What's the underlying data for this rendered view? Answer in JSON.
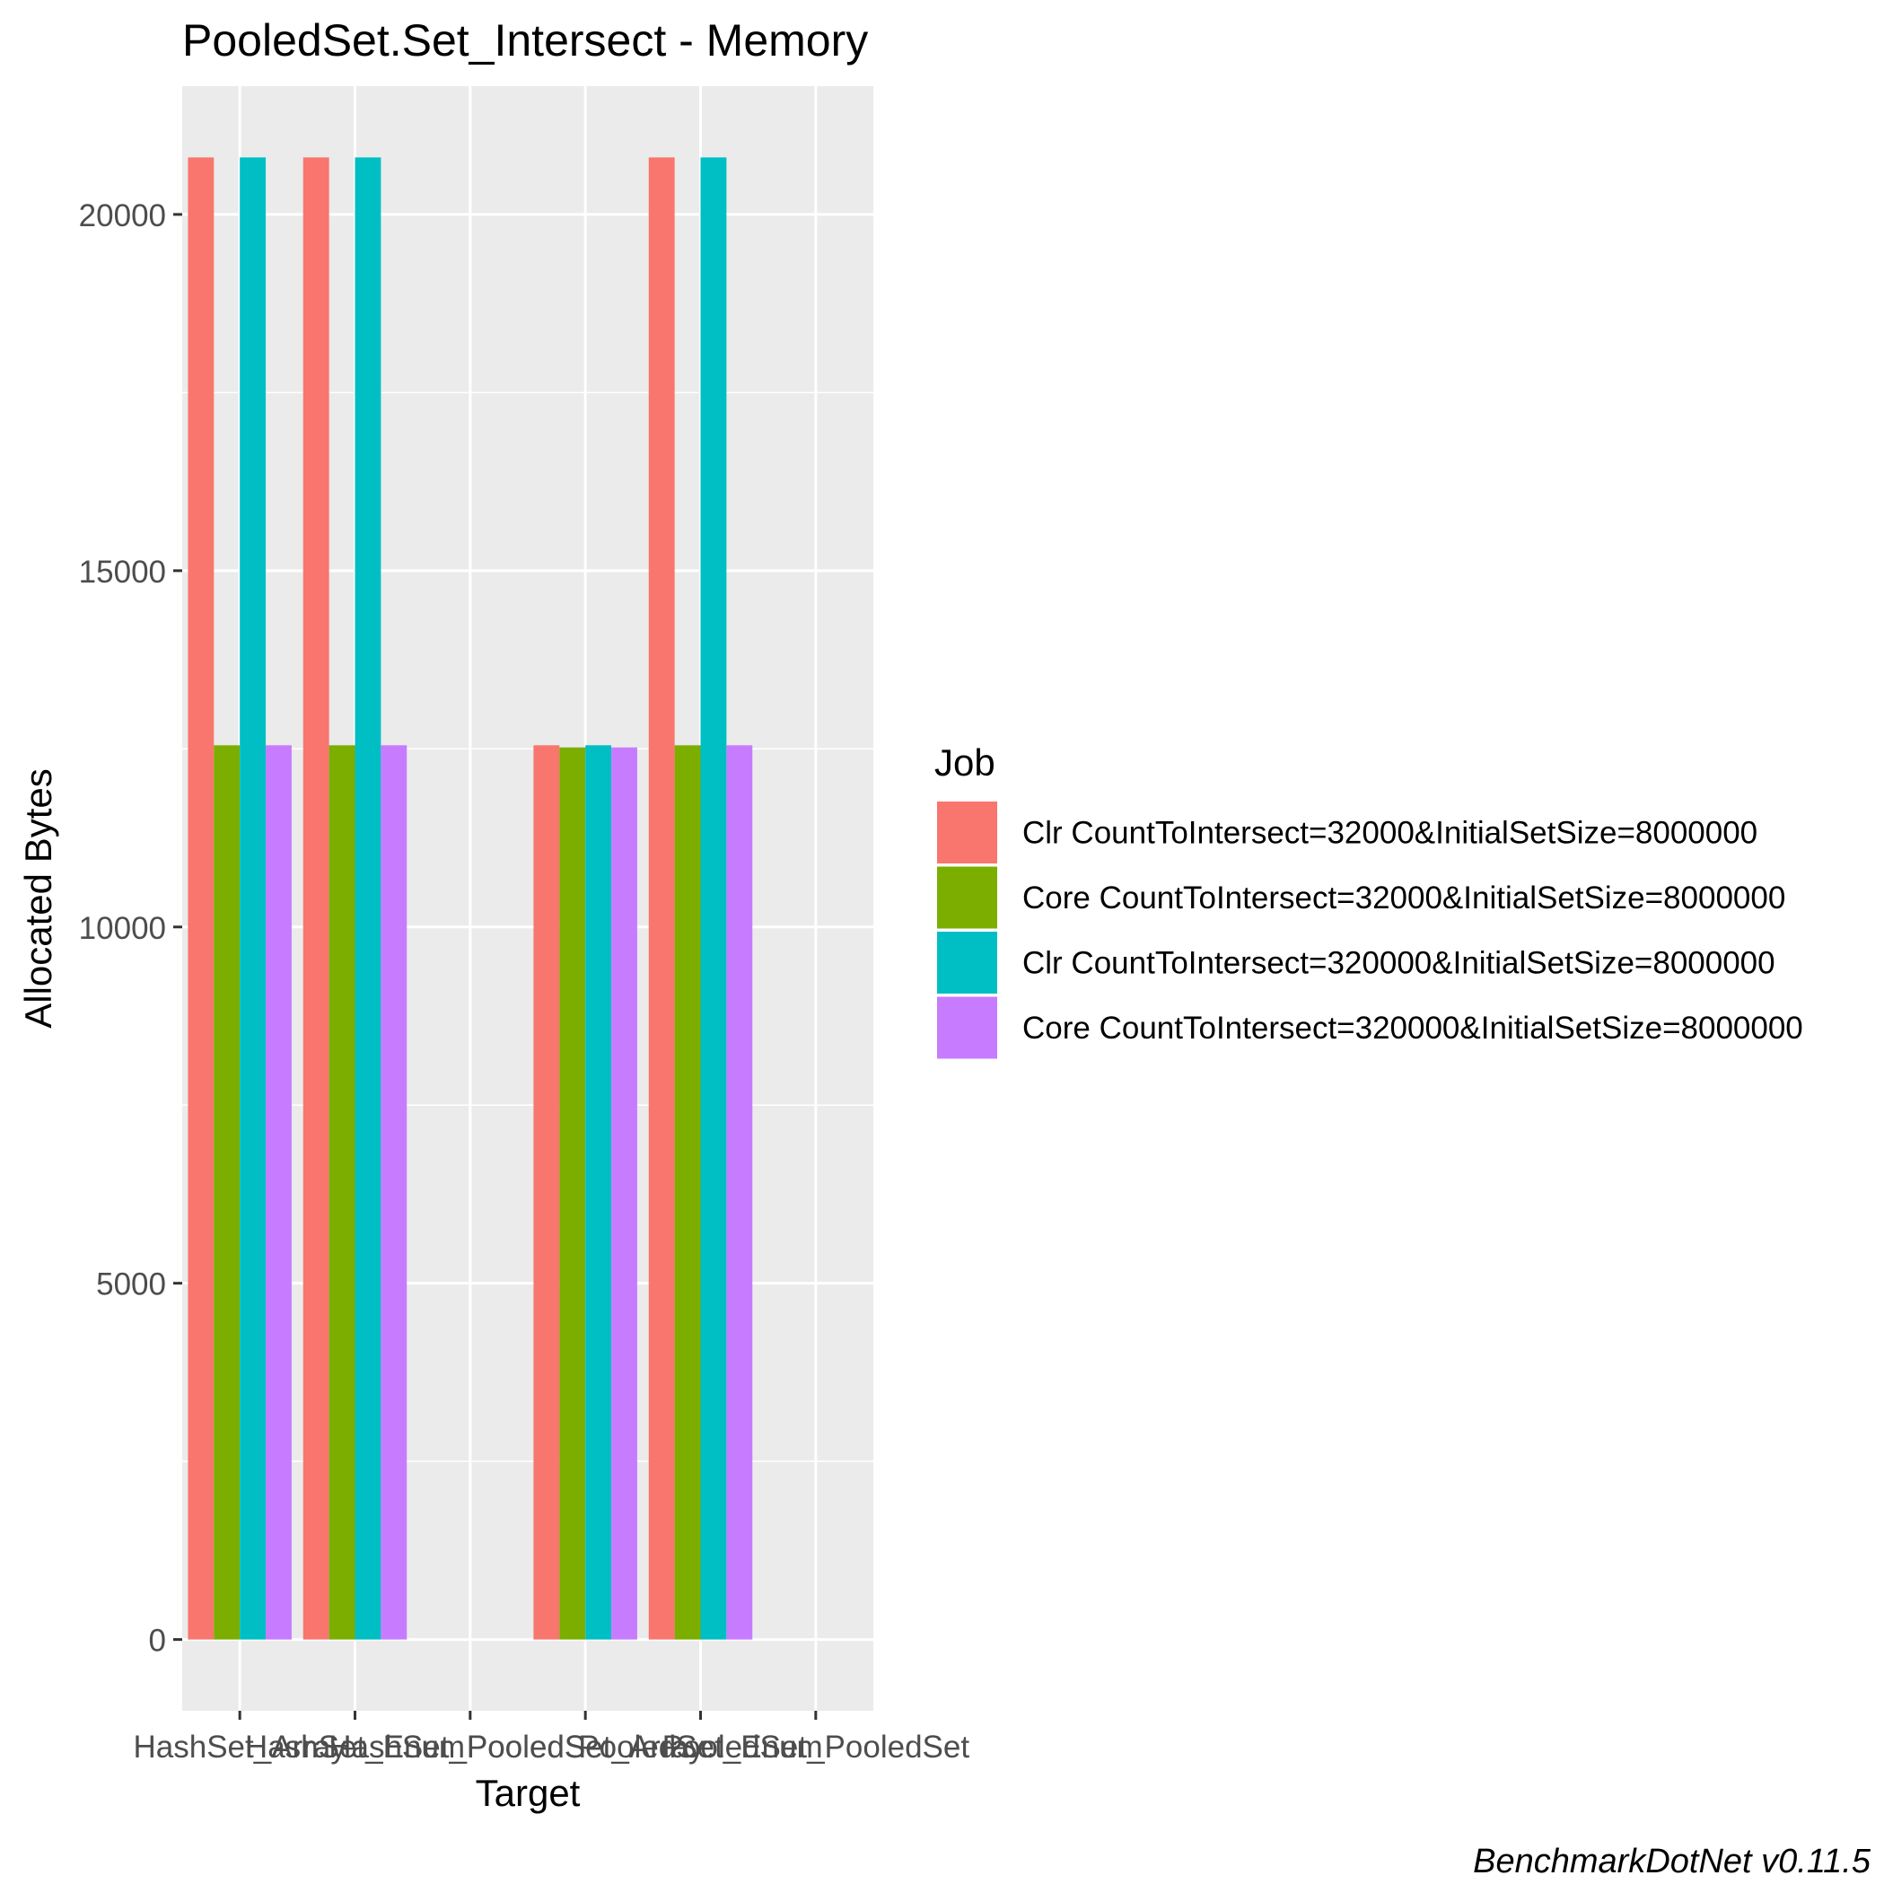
{
  "chart_data": {
    "type": "bar",
    "title": "PooledSet.Set_Intersect - Memory",
    "xlabel": "Target",
    "ylabel": "Allocated  Bytes",
    "ylim": [
      -1000,
      21800
    ],
    "yticks": [
      0,
      5000,
      10000,
      15000,
      20000
    ],
    "grid": true,
    "legend": {
      "title": "Job",
      "position": "right"
    },
    "categories": [
      "HashSet_Array",
      "HashSet_Enum",
      "HashSet_PooledSet",
      "PooledSet_Array",
      "PooledSet_Enum",
      "PooledSet_PooledSet"
    ],
    "tick_labels": [
      "HashSet_Array",
      "HashSet_Enum",
      "HashSet_PooledSet",
      "PooledSet_Array",
      "PooledSet_Enum",
      "PooledSet_PooledSet"
    ],
    "series": [
      {
        "name": "Clr CountToIntersect=32000&InitialSetSize=8000000",
        "color": "#F8766D",
        "values": [
          20800,
          20800,
          0,
          12550,
          20800,
          0
        ]
      },
      {
        "name": "Core CountToIntersect=32000&InitialSetSize=8000000",
        "color": "#7CAE00",
        "values": [
          12550,
          12550,
          0,
          12520,
          12550,
          0
        ]
      },
      {
        "name": "Clr CountToIntersect=320000&InitialSetSize=8000000",
        "color": "#00BFC4",
        "values": [
          20800,
          20800,
          0,
          12550,
          20800,
          0
        ]
      },
      {
        "name": "Core CountToIntersect=320000&InitialSetSize=8000000",
        "color": "#C77CFF",
        "values": [
          12550,
          12550,
          0,
          12520,
          12550,
          0
        ]
      }
    ]
  },
  "caption": "BenchmarkDotNet v0.11.5"
}
